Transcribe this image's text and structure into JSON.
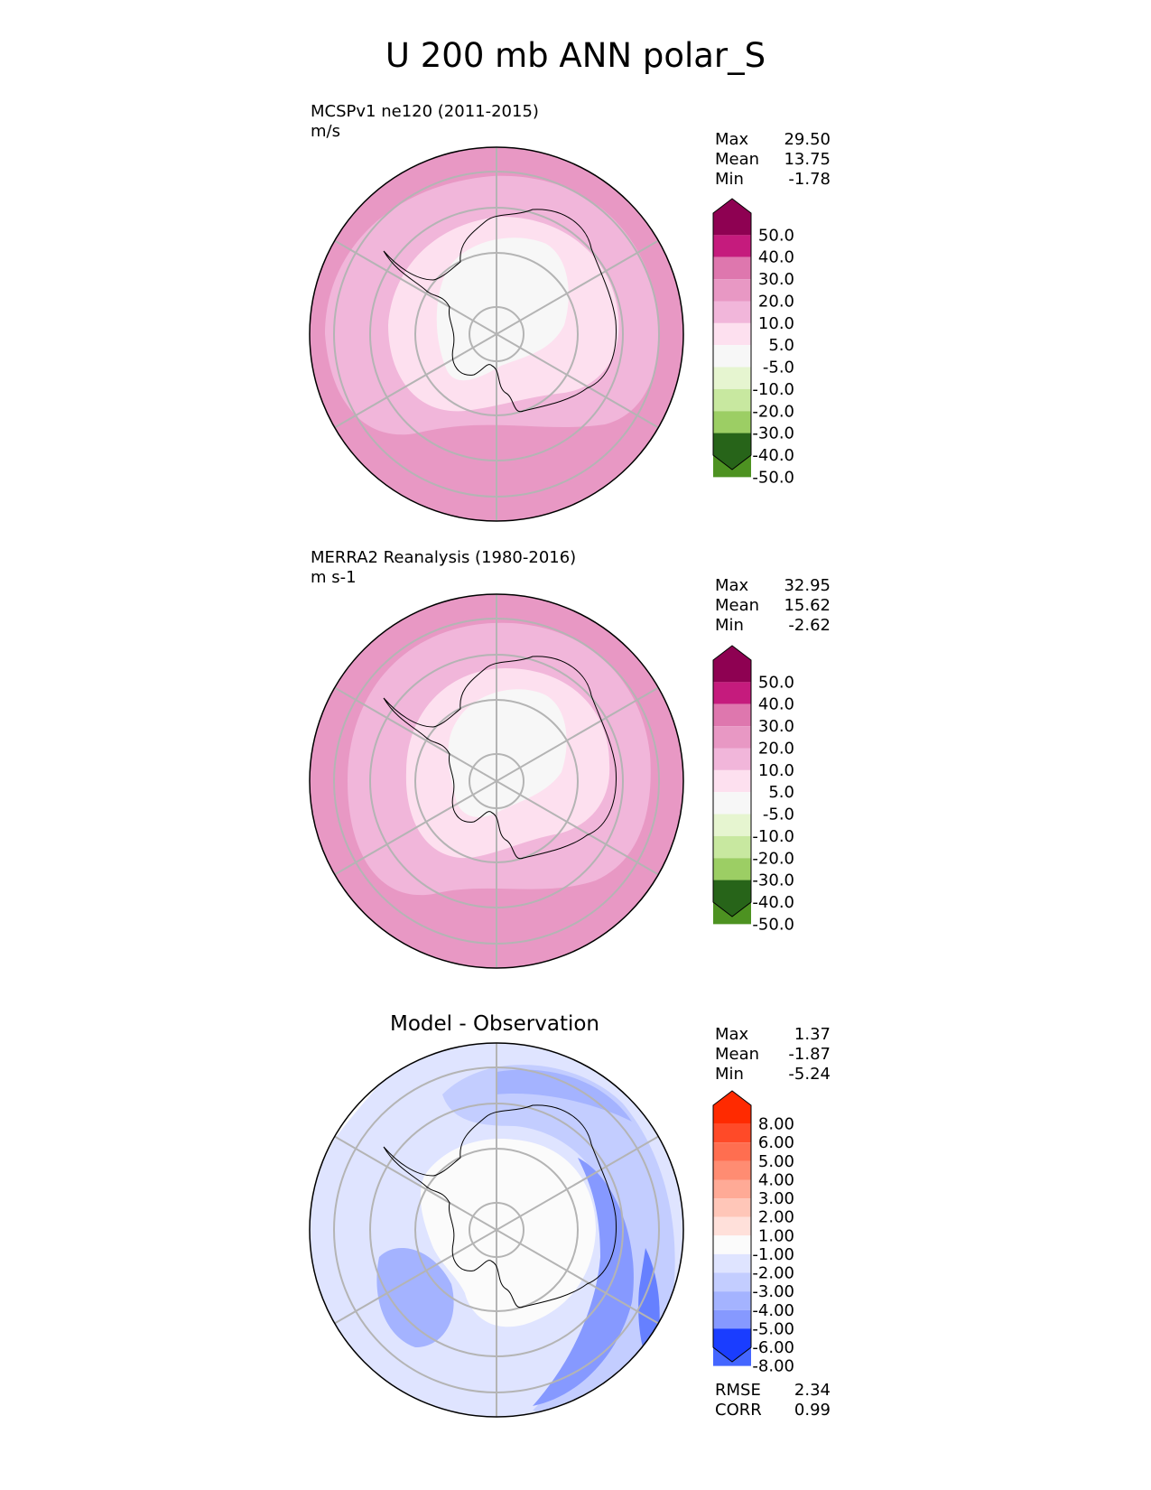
{
  "title": "U 200 mb ANN polar_S",
  "panels": [
    {
      "id": "test",
      "header_lines": [
        "MCSPv1 ne120 (2011-2015)",
        "m/s"
      ],
      "stats": [
        {
          "label": "Max",
          "value": "29.50"
        },
        {
          "label": "Mean",
          "value": "13.75"
        },
        {
          "label": "Min",
          "value": "-1.78"
        }
      ],
      "colorbar": {
        "labels": [
          "50.0",
          "40.0",
          "30.0",
          "20.0",
          "10.0",
          "5.0",
          "-5.0",
          "-10.0",
          "-20.0",
          "-30.0",
          "-40.0",
          "-50.0"
        ],
        "colors": [
          "#8e0152",
          "#c51b7d",
          "#de77ae",
          "#e898c4",
          "#f1b6da",
          "#fde0ef",
          "#f7f7f7",
          "#e6f5d0",
          "#c8e8a0",
          "#9cce64",
          "#6fab38",
          "#4d9221",
          "#276419"
        ]
      }
    },
    {
      "id": "reference",
      "header_lines": [
        "MERRA2 Reanalysis (1980-2016)",
        "m s-1"
      ],
      "stats": [
        {
          "label": "Max",
          "value": "32.95"
        },
        {
          "label": "Mean",
          "value": "15.62"
        },
        {
          "label": "Min",
          "value": "-2.62"
        }
      ],
      "colorbar": {
        "labels": [
          "50.0",
          "40.0",
          "30.0",
          "20.0",
          "10.0",
          "5.0",
          "-5.0",
          "-10.0",
          "-20.0",
          "-30.0",
          "-40.0",
          "-50.0"
        ],
        "colors": [
          "#8e0152",
          "#c51b7d",
          "#de77ae",
          "#e898c4",
          "#f1b6da",
          "#fde0ef",
          "#f7f7f7",
          "#e6f5d0",
          "#c8e8a0",
          "#9cce64",
          "#6fab38",
          "#4d9221",
          "#276419"
        ]
      }
    },
    {
      "id": "diff",
      "center_title": "Model - Observation",
      "stats": [
        {
          "label": "Max",
          "value": "1.37"
        },
        {
          "label": "Mean",
          "value": "-1.87"
        },
        {
          "label": "Min",
          "value": "-5.24"
        }
      ],
      "colorbar": {
        "labels": [
          "8.00",
          "6.00",
          "5.00",
          "4.00",
          "3.00",
          "2.00",
          "1.00",
          "-1.00",
          "-2.00",
          "-3.00",
          "-4.00",
          "-5.00",
          "-6.00",
          "-8.00"
        ],
        "colors": [
          "#ff2a00",
          "#ff4a28",
          "#ff6e50",
          "#ff8c72",
          "#ffaa96",
          "#ffc6b8",
          "#ffe0da",
          "#fbfbfb",
          "#dfe4ff",
          "#c3cdff",
          "#a4b3ff",
          "#8699ff",
          "#6680ff",
          "#4466ff",
          "#1a3dff"
        ]
      },
      "metrics": [
        {
          "label": "RMSE",
          "value": "2.34"
        },
        {
          "label": "CORR",
          "value": "0.99"
        }
      ]
    }
  ]
}
